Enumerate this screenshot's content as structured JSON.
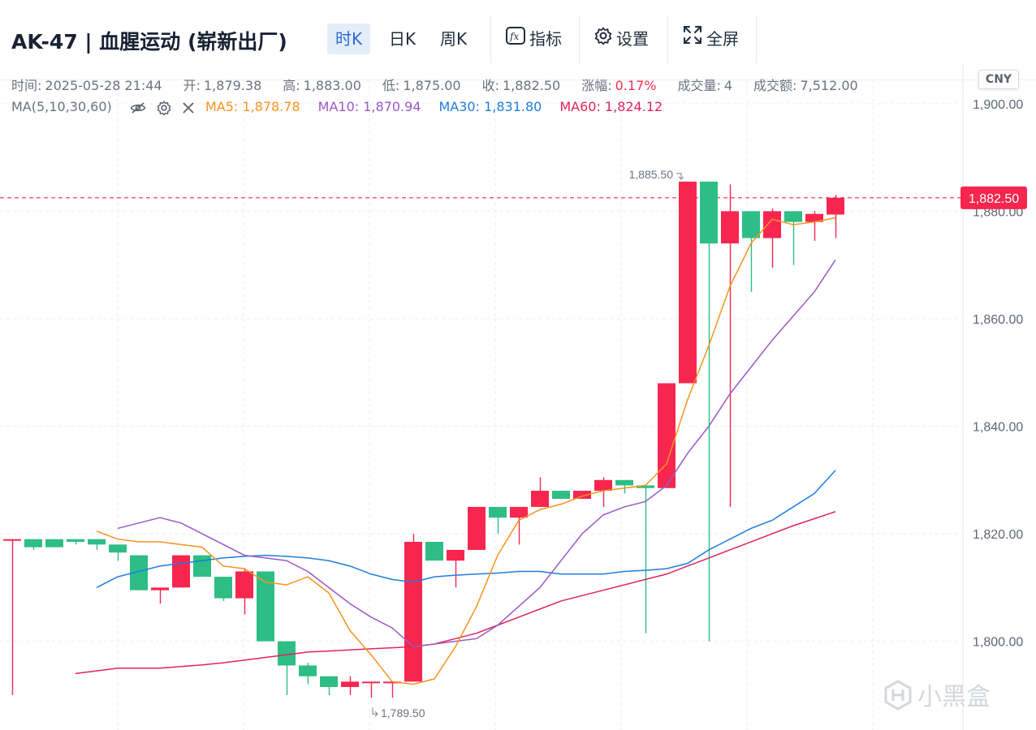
{
  "toolbar": {
    "title": "AK-47 | 血腥运动 (崭新出厂)",
    "tabs": [
      {
        "label": "时K",
        "active": true
      },
      {
        "label": "日K",
        "active": false
      },
      {
        "label": "周K",
        "active": false
      }
    ],
    "indicator_label": "指标",
    "settings_label": "设置",
    "fullscreen_label": "全屏"
  },
  "ohlc": {
    "time_label": "时间:",
    "time": "2025-05-28 21:44",
    "open_label": "开:",
    "open": "1,879.38",
    "high_label": "高:",
    "high": "1,883.00",
    "low_label": "低:",
    "low": "1,875.00",
    "close_label": "收:",
    "close": "1,882.50",
    "change_label": "涨幅:",
    "change": "0.17%",
    "volume_label": "成交量:",
    "volume": "4",
    "amount_label": "成交额:",
    "amount": "7,512.00"
  },
  "ma": {
    "label": "MA(5,10,30,60)",
    "ma5": "MA5: 1,878.78",
    "ma10": "MA10: 1,870.94",
    "ma30": "MA30: 1,831.80",
    "ma60": "MA60: 1,824.12"
  },
  "currency": "CNY",
  "watermark": "小黑盒",
  "colors": {
    "up": "#f7264f",
    "down": "#2ebd85",
    "ma5": "#f7931e",
    "ma10": "#9b59c6",
    "ma30": "#1f7de0",
    "ma60": "#e0245e",
    "last_price": "#f7264f"
  },
  "chart_data": {
    "type": "candlestick",
    "y_ticks": [
      "1,800.00",
      "1,820.00",
      "1,840.00",
      "1,860.00",
      "1,880.00",
      "1,900.00"
    ],
    "y_tick_values": [
      1800,
      1820,
      1840,
      1860,
      1880,
      1900
    ],
    "ylim": [
      1783.5,
      1904.5
    ],
    "grid": true,
    "last_price": 1882.5,
    "last_price_label": "1,882.50",
    "max_label": "1,885.50",
    "min_label": "1,789.50",
    "candles": [
      {
        "o": 1819.0,
        "h": 1819.0,
        "l": 1790.0,
        "c": 1819.0
      },
      {
        "o": 1819.0,
        "h": 1819.0,
        "l": 1817.0,
        "c": 1817.5
      },
      {
        "o": 1819.0,
        "h": 1819.0,
        "l": 1817.5,
        "c": 1817.5
      },
      {
        "o": 1819.0,
        "h": 1819.0,
        "l": 1818.0,
        "c": 1818.5
      },
      {
        "o": 1819.0,
        "h": 1819.0,
        "l": 1817.0,
        "c": 1818.0
      },
      {
        "o": 1818.0,
        "h": 1818.0,
        "l": 1815.0,
        "c": 1816.5
      },
      {
        "o": 1816.0,
        "h": 1816.0,
        "l": 1809.5,
        "c": 1809.5
      },
      {
        "o": 1809.5,
        "h": 1810.0,
        "l": 1807.0,
        "c": 1810.0
      },
      {
        "o": 1810.0,
        "h": 1816.0,
        "l": 1810.0,
        "c": 1816.0
      },
      {
        "o": 1816.0,
        "h": 1816.0,
        "l": 1812.0,
        "c": 1812.0
      },
      {
        "o": 1812.0,
        "h": 1812.0,
        "l": 1807.5,
        "c": 1808.0
      },
      {
        "o": 1808.0,
        "h": 1813.5,
        "l": 1805.0,
        "c": 1813.0
      },
      {
        "o": 1813.0,
        "h": 1813.0,
        "l": 1800.0,
        "c": 1800.0
      },
      {
        "o": 1800.0,
        "h": 1800.0,
        "l": 1790.0,
        "c": 1795.5
      },
      {
        "o": 1795.5,
        "h": 1796.0,
        "l": 1792.0,
        "c": 1793.5
      },
      {
        "o": 1793.5,
        "h": 1793.5,
        "l": 1790.0,
        "c": 1791.5
      },
      {
        "o": 1791.5,
        "h": 1793.5,
        "l": 1790.0,
        "c": 1792.5
      },
      {
        "o": 1792.5,
        "h": 1792.5,
        "l": 1789.5,
        "c": 1792.5
      },
      {
        "o": 1792.5,
        "h": 1792.5,
        "l": 1789.5,
        "c": 1792.5
      },
      {
        "o": 1792.5,
        "h": 1820.0,
        "l": 1792.5,
        "c": 1818.5
      },
      {
        "o": 1818.5,
        "h": 1818.5,
        "l": 1815.0,
        "c": 1815.0
      },
      {
        "o": 1815.0,
        "h": 1817.0,
        "l": 1810.0,
        "c": 1817.0
      },
      {
        "o": 1817.0,
        "h": 1825.0,
        "l": 1817.0,
        "c": 1825.0
      },
      {
        "o": 1825.0,
        "h": 1825.0,
        "l": 1820.0,
        "c": 1823.0
      },
      {
        "o": 1823.0,
        "h": 1825.0,
        "l": 1818.0,
        "c": 1825.0
      },
      {
        "o": 1825.0,
        "h": 1830.5,
        "l": 1825.0,
        "c": 1828.0
      },
      {
        "o": 1828.0,
        "h": 1828.0,
        "l": 1826.5,
        "c": 1826.5
      },
      {
        "o": 1826.5,
        "h": 1828.0,
        "l": 1826.5,
        "c": 1828.0
      },
      {
        "o": 1828.0,
        "h": 1830.5,
        "l": 1825.0,
        "c": 1830.0
      },
      {
        "o": 1830.0,
        "h": 1830.0,
        "l": 1827.5,
        "c": 1829.0
      },
      {
        "o": 1829.0,
        "h": 1829.0,
        "l": 1801.5,
        "c": 1828.5
      },
      {
        "o": 1828.5,
        "h": 1848.0,
        "l": 1828.5,
        "c": 1848.0
      },
      {
        "o": 1848.0,
        "h": 1885.5,
        "l": 1848.0,
        "c": 1885.5
      },
      {
        "o": 1885.5,
        "h": 1885.5,
        "l": 1800.0,
        "c": 1874.0
      },
      {
        "o": 1874.0,
        "h": 1885.0,
        "l": 1825.0,
        "c": 1880.0
      },
      {
        "o": 1880.0,
        "h": 1880.0,
        "l": 1865.0,
        "c": 1875.0
      },
      {
        "o": 1875.0,
        "h": 1880.5,
        "l": 1869.5,
        "c": 1880.0
      },
      {
        "o": 1880.0,
        "h": 1880.0,
        "l": 1870.0,
        "c": 1878.0
      },
      {
        "o": 1878.0,
        "h": 1880.0,
        "l": 1874.5,
        "c": 1879.5
      },
      {
        "o": 1879.38,
        "h": 1883.0,
        "l": 1875.0,
        "c": 1882.5
      }
    ],
    "ma5_values": [
      1820.5,
      1819.0,
      1818.5,
      1818.5,
      1818.0,
      1817.5,
      1814.0,
      1813.5,
      1811.0,
      1810.5,
      1812.0,
      1809.0,
      1802.0,
      1797.5,
      1792.5,
      1792.0,
      1793.0,
      1799.0,
      1806.5,
      1816.0,
      1822.5,
      1824.5,
      1825.5,
      1827.0,
      1828.0,
      1828.5,
      1829.0,
      1833.0,
      1845.0,
      1855.0,
      1866.0,
      1874.0,
      1878.5,
      1877.5,
      1878.0,
      1878.78
    ],
    "ma10_values": [
      1821.0,
      1822.0,
      1823.0,
      1822.0,
      1820.0,
      1818.0,
      1816.0,
      1815.5,
      1815.0,
      1813.0,
      1810.0,
      1807.0,
      1804.5,
      1802.5,
      1799.0,
      1799.5,
      1800.0,
      1800.5,
      1803.0,
      1806.5,
      1810.0,
      1815.0,
      1820.0,
      1823.5,
      1825.0,
      1826.0,
      1829.0,
      1835.0,
      1840.0,
      1846.0,
      1851.0,
      1856.0,
      1860.5,
      1865.0,
      1870.94
    ],
    "ma30_values": [
      1810.0,
      1812.0,
      1813.0,
      1814.0,
      1814.5,
      1815.0,
      1815.5,
      1815.8,
      1816.0,
      1815.8,
      1815.5,
      1815.0,
      1814.0,
      1812.5,
      1811.5,
      1811.0,
      1812.0,
      1812.3,
      1812.5,
      1812.7,
      1813.0,
      1813.0,
      1812.5,
      1812.5,
      1812.5,
      1813.0,
      1813.2,
      1813.5,
      1814.5,
      1817.0,
      1819.0,
      1821.0,
      1822.5,
      1825.0,
      1827.5,
      1831.8
    ],
    "ma60_values": [
      1794.0,
      1794.5,
      1795.0,
      1795.0,
      1795.0,
      1795.3,
      1795.6,
      1796.0,
      1796.5,
      1797.0,
      1797.5,
      1798.0,
      1798.2,
      1798.4,
      1798.6,
      1798.8,
      1799.0,
      1799.5,
      1800.5,
      1801.5,
      1803.0,
      1804.5,
      1806.0,
      1807.5,
      1808.5,
      1809.5,
      1810.5,
      1811.5,
      1812.5,
      1814.0,
      1815.5,
      1817.0,
      1818.5,
      1820.0,
      1821.5,
      1822.8,
      1824.12
    ]
  }
}
